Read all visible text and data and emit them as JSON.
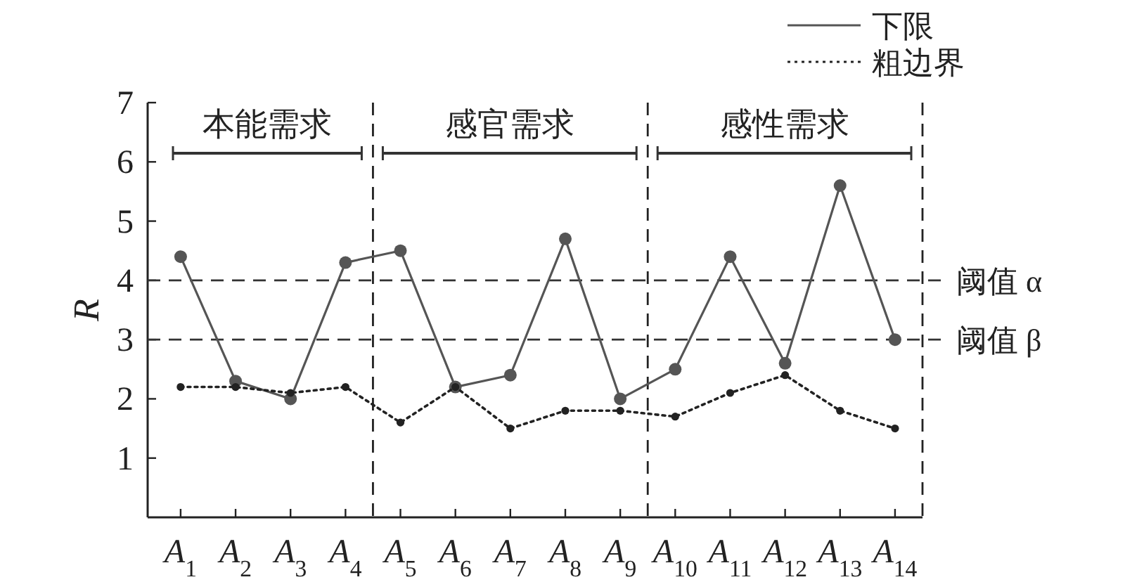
{
  "chart_data": {
    "type": "line",
    "ylabel": "R",
    "x": [
      1,
      2,
      3,
      4,
      5,
      6,
      7,
      8,
      9,
      10,
      11,
      12,
      13,
      14
    ],
    "xlim": [
      0.4,
      14.5
    ],
    "xticks": [
      {
        "value": 1,
        "label": "A$_{1}$"
      },
      {
        "value": 2,
        "label": "A$_{2}$"
      },
      {
        "value": 3,
        "label": "A$_{3}$"
      },
      {
        "value": 4,
        "label": "A$_{4}$"
      },
      {
        "value": 5,
        "label": "A$_{5}$"
      },
      {
        "value": 6,
        "label": "A$_{6}$"
      },
      {
        "value": 7,
        "label": "A$_{7}$"
      },
      {
        "value": 8,
        "label": "A$_{8}$"
      },
      {
        "value": 9,
        "label": "A$_{9}$"
      },
      {
        "value": 10,
        "label": "A$_{10}$"
      },
      {
        "value": 11,
        "label": "A$_{11}$"
      },
      {
        "value": 12,
        "label": "A$_{12}$"
      },
      {
        "value": 13,
        "label": "A$_{13}$"
      },
      {
        "value": 14,
        "label": "A$_{14}$"
      }
    ],
    "ylim": [
      0,
      7
    ],
    "yticks": [
      1,
      2,
      3,
      4,
      5,
      6,
      7
    ],
    "marker": "circle",
    "legend": "top right",
    "series": [
      {
        "name": "下限",
        "color": "#555555",
        "line_style": "solid",
        "values": [
          4.4,
          2.3,
          2.0,
          4.3,
          4.5,
          2.2,
          2.4,
          4.7,
          2.0,
          2.5,
          4.4,
          2.6,
          5.6,
          3.0
        ]
      },
      {
        "name": "粗边界",
        "color": "#222222",
        "line_style": "dotted",
        "values": [
          2.2,
          2.2,
          2.1,
          2.2,
          1.6,
          2.2,
          1.5,
          1.8,
          1.8,
          1.7,
          2.1,
          2.4,
          1.8,
          1.5
        ]
      }
    ],
    "ref_lines": [
      {
        "axis": "y",
        "value": 4,
        "label": "阈值 α",
        "line_style": "dashed",
        "color": "#333333"
      },
      {
        "axis": "y",
        "value": 3,
        "label": "阈值 β",
        "line_style": "dashed",
        "color": "#333333"
      },
      {
        "axis": "x",
        "value": 4.5,
        "line_style": "dashed",
        "color": "#222222"
      },
      {
        "axis": "x",
        "value": 9.5,
        "line_style": "dashed",
        "color": "#222222"
      },
      {
        "axis": "x",
        "value": 14.5,
        "line_style": "dashed",
        "color": "#222222"
      }
    ],
    "annotations": [
      "本能需求",
      "感官需求",
      "感性需求"
    ]
  }
}
